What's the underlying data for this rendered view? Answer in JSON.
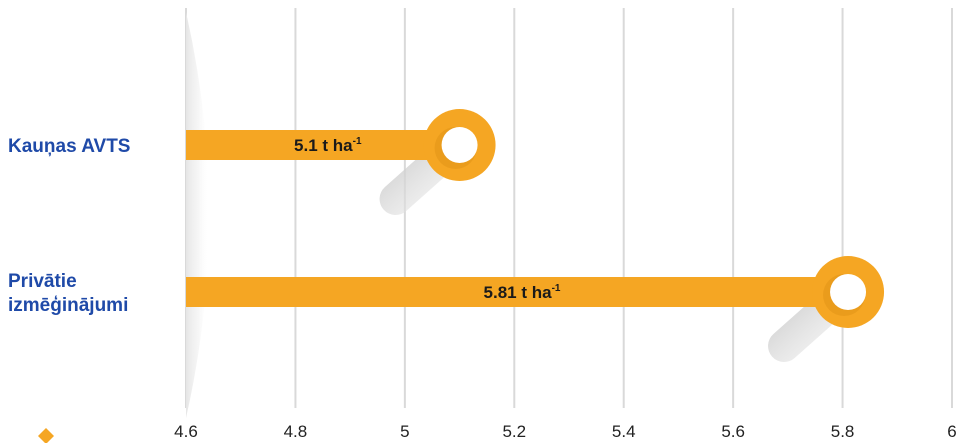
{
  "chart_data": {
    "type": "bar",
    "orientation": "horizontal",
    "categories": [
      "Kauņas AVTS",
      "Privātie izmēģinājumi"
    ],
    "category_lines": [
      [
        "Kauņas AVTS"
      ],
      [
        "Privātie",
        "izmēģinājumi"
      ]
    ],
    "values": [
      5.1,
      5.81
    ],
    "data_labels": [
      {
        "text": "5.1 t ha",
        "sup": "-1"
      },
      {
        "text": "5.81 t ha",
        "sup": "-1"
      }
    ],
    "xlim": [
      4.6,
      6
    ],
    "x_ticks": [
      "4.6",
      "4.8",
      "5",
      "5.2",
      "5.4",
      "5.6",
      "5.8",
      "6"
    ],
    "grid": true,
    "title": "",
    "xlabel": "",
    "ylabel": ""
  },
  "colors": {
    "bar": "#f5a623",
    "bar_dark": "#d88a10",
    "knob_inner": "#ffffff",
    "shadow": "#d4d4d4",
    "grid": "#d9d9d9",
    "category_text": "#1f4aa8",
    "accent_diamond": "#f5a623"
  }
}
